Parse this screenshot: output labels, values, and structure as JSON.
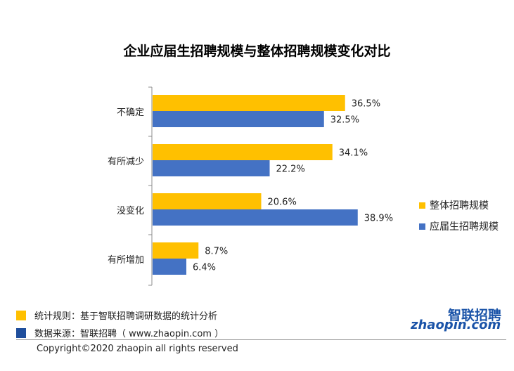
{
  "title": "企业应届生招聘规模与整体招聘规模变化对比",
  "legend": [
    {
      "label": "整体招聘规模",
      "color": "#ffc000"
    },
    {
      "label": "应届生招聘规模",
      "color": "#4472c4"
    }
  ],
  "chart_data": {
    "type": "bar",
    "orientation": "horizontal",
    "title": "企业应届生招聘规模与整体招聘规模变化对比",
    "categories": [
      "不确定",
      "有所减少",
      "没变化",
      "有所增加"
    ],
    "series": [
      {
        "name": "整体招聘规模",
        "color": "#ffc000",
        "values": [
          36.5,
          34.1,
          20.6,
          8.7
        ],
        "labels": [
          "36.5%",
          "34.1%",
          "20.6%",
          "8.7%"
        ]
      },
      {
        "name": "应届生招聘规模",
        "color": "#4472c4",
        "values": [
          32.5,
          22.2,
          38.9,
          6.4
        ],
        "labels": [
          "32.5%",
          "22.2%",
          "38.9%",
          "6.4%"
        ]
      }
    ],
    "xlim": [
      0,
      45
    ],
    "unit": "%",
    "grid": false,
    "legend_position": "right"
  },
  "notes": [
    {
      "text": "统计规则：基于智联招聘调研数据的统计分析",
      "color": "#ffc000"
    },
    {
      "text": "数据来源：智联招聘（ www.zhaopin.com ）",
      "color": "#1f4e9c"
    }
  ],
  "copyright": "Copyright©2020 zhaopin all rights reserved",
  "logo": {
    "cn": "智联招聘",
    "en": "zhaopin.com"
  }
}
